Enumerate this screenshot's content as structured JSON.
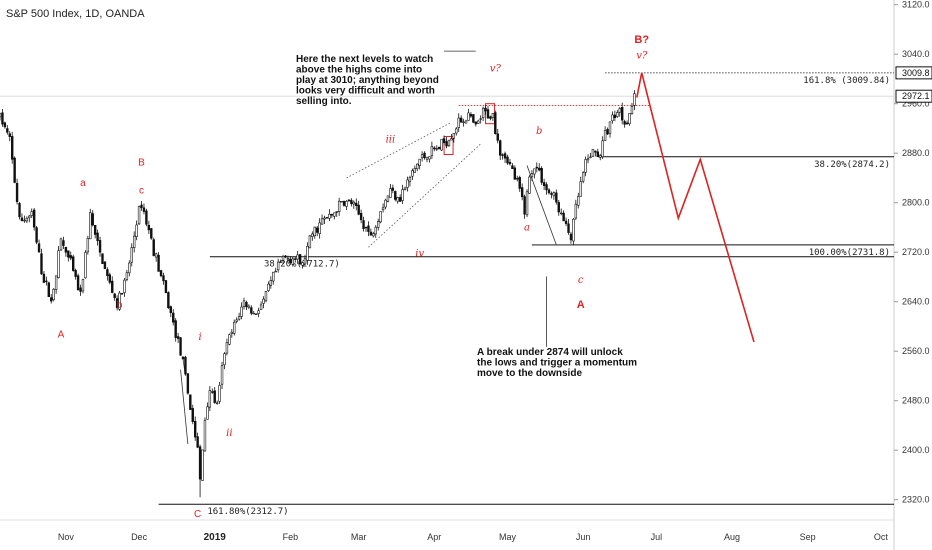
{
  "title": "S&P 500 Index, 1D, OANDA",
  "colors": {
    "up": "#ffffff",
    "down": "#111111",
    "wick": "#111111",
    "annotation_red": "#dd2222",
    "axis_text": "#333333"
  },
  "chart_data": {
    "type": "candlestick",
    "title": "S&P 500 Index, 1D, OANDA",
    "xlabel": "",
    "ylabel": "",
    "ylim": [
      2270,
      3130
    ],
    "y_ticks": [
      "3120.0",
      "3040.0",
      "2960.0",
      "2880.0",
      "2800.0",
      "2720.0",
      "2640.0",
      "2560.0",
      "2480.0",
      "2400.0",
      "2320.0"
    ],
    "x_ticks": [
      {
        "label": "Nov",
        "d": 27
      },
      {
        "label": "Dec",
        "d": 57
      },
      {
        "label": "2019",
        "d": 88,
        "bold": true
      },
      {
        "label": "Feb",
        "d": 119
      },
      {
        "label": "Mar",
        "d": 147
      },
      {
        "label": "Apr",
        "d": 178
      },
      {
        "label": "May",
        "d": 208
      },
      {
        "label": "Jun",
        "d": 239
      },
      {
        "label": "Jul",
        "d": 269
      },
      {
        "label": "Aug",
        "d": 300
      },
      {
        "label": "Sep",
        "d": 331
      },
      {
        "label": "Oct",
        "d": 361
      }
    ],
    "price_anchors": [
      [
        0,
        2940
      ],
      [
        4,
        2900
      ],
      [
        8,
        2770
      ],
      [
        13,
        2780
      ],
      [
        17,
        2690
      ],
      [
        21,
        2640
      ],
      [
        25,
        2740
      ],
      [
        29,
        2700
      ],
      [
        33,
        2650
      ],
      [
        37,
        2780
      ],
      [
        40,
        2730
      ],
      [
        44,
        2680
      ],
      [
        48,
        2635
      ],
      [
        52,
        2680
      ],
      [
        56,
        2770
      ],
      [
        58,
        2800
      ],
      [
        62,
        2740
      ],
      [
        66,
        2680
      ],
      [
        70,
        2620
      ],
      [
        74,
        2560
      ],
      [
        78,
        2470
      ],
      [
        81,
        2400
      ],
      [
        82,
        2351
      ],
      [
        84,
        2450
      ],
      [
        86,
        2500
      ],
      [
        89,
        2470
      ],
      [
        92,
        2560
      ],
      [
        96,
        2600
      ],
      [
        100,
        2640
      ],
      [
        104,
        2620
      ],
      [
        108,
        2640
      ],
      [
        112,
        2680
      ],
      [
        116,
        2710
      ],
      [
        120,
        2712
      ],
      [
        124,
        2700
      ],
      [
        128,
        2750
      ],
      [
        132,
        2770
      ],
      [
        136,
        2780
      ],
      [
        140,
        2800
      ],
      [
        144,
        2800
      ],
      [
        150,
        2760
      ],
      [
        152,
        2745
      ],
      [
        156,
        2790
      ],
      [
        160,
        2820
      ],
      [
        164,
        2810
      ],
      [
        168,
        2840
      ],
      [
        172,
        2870
      ],
      [
        176,
        2880
      ],
      [
        180,
        2890
      ],
      [
        184,
        2905
      ],
      [
        188,
        2930
      ],
      [
        192,
        2940
      ],
      [
        195,
        2920
      ],
      [
        198,
        2945
      ],
      [
        202,
        2940
      ],
      [
        205,
        2885
      ],
      [
        208,
        2870
      ],
      [
        211,
        2840
      ],
      [
        213,
        2820
      ],
      [
        215,
        2790
      ],
      [
        217,
        2840
      ],
      [
        219,
        2860
      ],
      [
        221,
        2850
      ],
      [
        224,
        2820
      ],
      [
        227,
        2810
      ],
      [
        229,
        2790
      ],
      [
        232,
        2760
      ],
      [
        234,
        2744
      ],
      [
        236,
        2790
      ],
      [
        238,
        2830
      ],
      [
        240,
        2860
      ],
      [
        242,
        2880
      ],
      [
        246,
        2880
      ],
      [
        248,
        2910
      ],
      [
        250,
        2930
      ],
      [
        252,
        2945
      ],
      [
        254,
        2950
      ],
      [
        256,
        2930
      ],
      [
        258,
        2945
      ],
      [
        260,
        2972
      ]
    ],
    "forecast_path": [
      [
        261,
        2970
      ],
      [
        263,
        3010
      ],
      [
        278,
        2775
      ],
      [
        287,
        2870
      ],
      [
        309,
        2575
      ]
    ],
    "levels": [
      {
        "label": "161.8% (3009.84)",
        "price": 3009.84,
        "style": "dotted",
        "d_from": 248
      },
      {
        "label": "38.20%(2874.2)",
        "price": 2874.2,
        "style": "solid",
        "d_from": 245
      },
      {
        "label": "100.00%(2731.8)",
        "price": 2731.8,
        "style": "solid",
        "d_from": 218
      },
      {
        "label": "38.20%(2712.7)",
        "price": 2712.7,
        "style": "solid",
        "d_from": 86
      },
      {
        "label": "161.80%(2312.7)",
        "price": 2312.7,
        "style": "solid",
        "d_from": 65
      }
    ],
    "price_labels": [
      {
        "text": "3009.8",
        "price": 3009.84
      },
      {
        "text": "2972.1",
        "price": 2972.1
      }
    ],
    "wave_labels": [
      {
        "text": "a",
        "d": 34,
        "price": 2827,
        "style": "n"
      },
      {
        "text": "B",
        "d": 58,
        "price": 2860,
        "style": "n"
      },
      {
        "text": "c",
        "d": 58,
        "price": 2815,
        "style": "n"
      },
      {
        "text": "A",
        "d": 25,
        "price": 2582,
        "style": "n"
      },
      {
        "text": "b",
        "d": 49,
        "price": 2630,
        "style": "n"
      },
      {
        "text": "i",
        "d": 82,
        "price": 2578,
        "style": "i"
      },
      {
        "text": "ii",
        "d": 94,
        "price": 2423,
        "style": "i"
      },
      {
        "text": "C",
        "d": 81,
        "price": 2292,
        "style": "n"
      },
      {
        "text": "iii",
        "d": 160,
        "price": 2897,
        "style": "i"
      },
      {
        "text": "iv",
        "d": 172,
        "price": 2713,
        "style": "i"
      },
      {
        "text": "v?",
        "d": 203,
        "price": 3012,
        "style": "i"
      },
      {
        "text": "b",
        "d": 221,
        "price": 2911,
        "style": "i"
      },
      {
        "text": "a",
        "d": 216,
        "price": 2755,
        "style": "i"
      },
      {
        "text": "c",
        "d": 238,
        "price": 2670,
        "style": "i"
      },
      {
        "text": "A",
        "d": 238,
        "price": 2630,
        "style": "bold"
      },
      {
        "text": "B?",
        "d": 263,
        "price": 3058,
        "style": "bold"
      },
      {
        "text": "v?",
        "d": 263,
        "price": 3033,
        "style": "i"
      }
    ],
    "notes": [
      {
        "lines": [
          "Here the next levels to watch",
          "above the highs come into",
          "play at 3010; anything beyond",
          "looks very difficult and worth",
          "selling into."
        ]
      },
      {
        "lines": [
          "A break under 2874 will unlock",
          "the lows and trigger a momentum",
          "move to the downside"
        ]
      }
    ]
  }
}
